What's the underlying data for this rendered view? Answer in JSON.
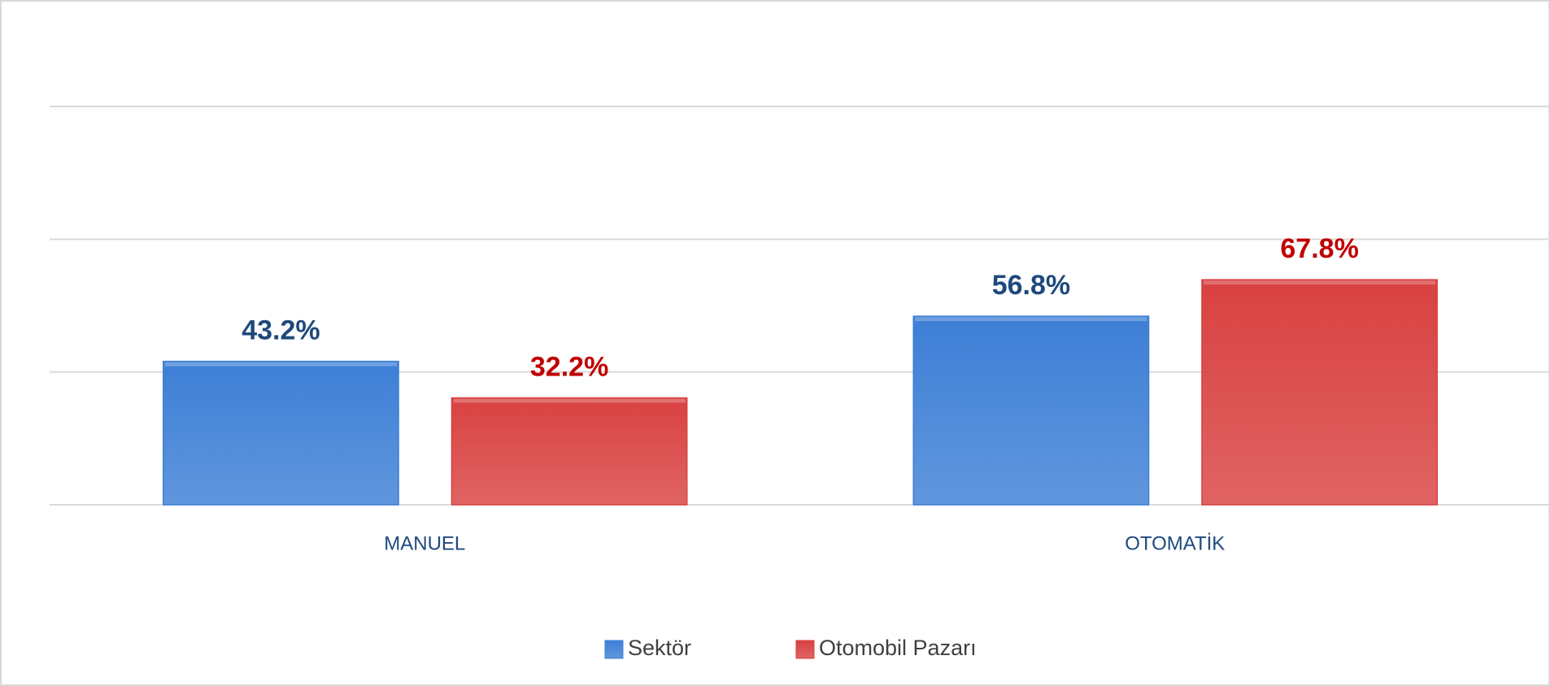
{
  "chart_data": {
    "type": "bar",
    "categories": [
      "MANUEL",
      "OTOMATİK"
    ],
    "series": [
      {
        "name": "Sektör",
        "color": "#3d7fd6",
        "label_color": "#1f497d",
        "values": [
          43.2,
          56.8
        ],
        "value_labels": [
          "43.2%",
          "56.8%"
        ]
      },
      {
        "name": "Otomobil Pazarı",
        "color": "#d94141",
        "label_color": "#c00000",
        "values": [
          32.2,
          67.8
        ],
        "value_labels": [
          "32.2%",
          "67.8%"
        ]
      }
    ],
    "ylim": [
      0,
      120
    ],
    "yticks": [
      0,
      40,
      80,
      120
    ],
    "grid": true,
    "legend": "bottom"
  }
}
